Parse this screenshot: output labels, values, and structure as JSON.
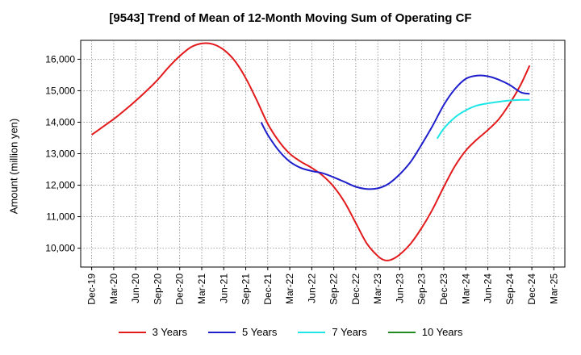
{
  "chart_data": {
    "type": "line",
    "title": "[9543]  Trend of Mean of 12-Month Moving Sum of Operating CF",
    "xlabel": "",
    "ylabel": "Amount (million yen)",
    "ylim": [
      9400,
      16600
    ],
    "yticks": [
      10000,
      11000,
      12000,
      13000,
      14000,
      15000,
      16000
    ],
    "ytick_labels": [
      "10,000",
      "11,000",
      "12,000",
      "13,000",
      "14,000",
      "15,000",
      "16,000"
    ],
    "x_categories": [
      "Dec-19",
      "Mar-20",
      "Jun-20",
      "Sep-20",
      "Dec-20",
      "Mar-21",
      "Jun-21",
      "Sep-21",
      "Dec-21",
      "Mar-22",
      "Jun-22",
      "Sep-22",
      "Dec-22",
      "Mar-23",
      "Jun-23",
      "Sep-23",
      "Dec-23",
      "Mar-24",
      "Jun-24",
      "Sep-24",
      "Dec-24",
      "Mar-25"
    ],
    "grid": true,
    "legend_position": "bottom",
    "series": [
      {
        "name": "3 Years",
        "color": "#e31a1c",
        "points": [
          [
            0,
            13600
          ],
          [
            0.5,
            13850
          ],
          [
            1,
            14100
          ],
          [
            1.5,
            14380
          ],
          [
            2,
            14680
          ],
          [
            2.5,
            15000
          ],
          [
            3,
            15350
          ],
          [
            3.5,
            15750
          ],
          [
            4,
            16100
          ],
          [
            4.5,
            16380
          ],
          [
            5,
            16500
          ],
          [
            5.5,
            16480
          ],
          [
            6,
            16300
          ],
          [
            6.5,
            15950
          ],
          [
            7,
            15400
          ],
          [
            7.5,
            14700
          ],
          [
            8,
            13950
          ],
          [
            8.5,
            13400
          ],
          [
            9,
            13000
          ],
          [
            9.5,
            12750
          ],
          [
            10,
            12550
          ],
          [
            10.5,
            12300
          ],
          [
            11,
            11950
          ],
          [
            11.5,
            11450
          ],
          [
            12,
            10800
          ],
          [
            12.5,
            10150
          ],
          [
            13,
            9750
          ],
          [
            13.3,
            9620
          ],
          [
            13.6,
            9630
          ],
          [
            14,
            9800
          ],
          [
            14.5,
            10150
          ],
          [
            15,
            10650
          ],
          [
            15.5,
            11250
          ],
          [
            16,
            11950
          ],
          [
            16.5,
            12600
          ],
          [
            17,
            13100
          ],
          [
            17.5,
            13450
          ],
          [
            18,
            13750
          ],
          [
            18.5,
            14100
          ],
          [
            19,
            14600
          ],
          [
            19.5,
            15200
          ],
          [
            19.9,
            15800
          ]
        ]
      },
      {
        "name": "5 Years",
        "color": "#1f1fcc",
        "points": [
          [
            7.7,
            14000
          ],
          [
            8,
            13600
          ],
          [
            8.5,
            13100
          ],
          [
            9,
            12750
          ],
          [
            9.5,
            12550
          ],
          [
            10,
            12450
          ],
          [
            10.5,
            12380
          ],
          [
            11,
            12250
          ],
          [
            11.5,
            12100
          ],
          [
            12,
            11950
          ],
          [
            12.5,
            11880
          ],
          [
            13,
            11900
          ],
          [
            13.5,
            12050
          ],
          [
            14,
            12350
          ],
          [
            14.5,
            12750
          ],
          [
            15,
            13300
          ],
          [
            15.5,
            13900
          ],
          [
            16,
            14550
          ],
          [
            16.5,
            15050
          ],
          [
            17,
            15380
          ],
          [
            17.5,
            15480
          ],
          [
            18,
            15460
          ],
          [
            18.5,
            15350
          ],
          [
            19,
            15180
          ],
          [
            19.5,
            14950
          ],
          [
            19.9,
            14900
          ]
        ]
      },
      {
        "name": "7 Years",
        "color": "#1ee6e6",
        "points": [
          [
            15.7,
            13480
          ],
          [
            16,
            13800
          ],
          [
            16.5,
            14150
          ],
          [
            17,
            14380
          ],
          [
            17.5,
            14530
          ],
          [
            18,
            14600
          ],
          [
            18.5,
            14650
          ],
          [
            19,
            14690
          ],
          [
            19.5,
            14710
          ],
          [
            19.9,
            14710
          ]
        ]
      },
      {
        "name": "10 Years",
        "color": "#228b22",
        "points": []
      }
    ]
  }
}
